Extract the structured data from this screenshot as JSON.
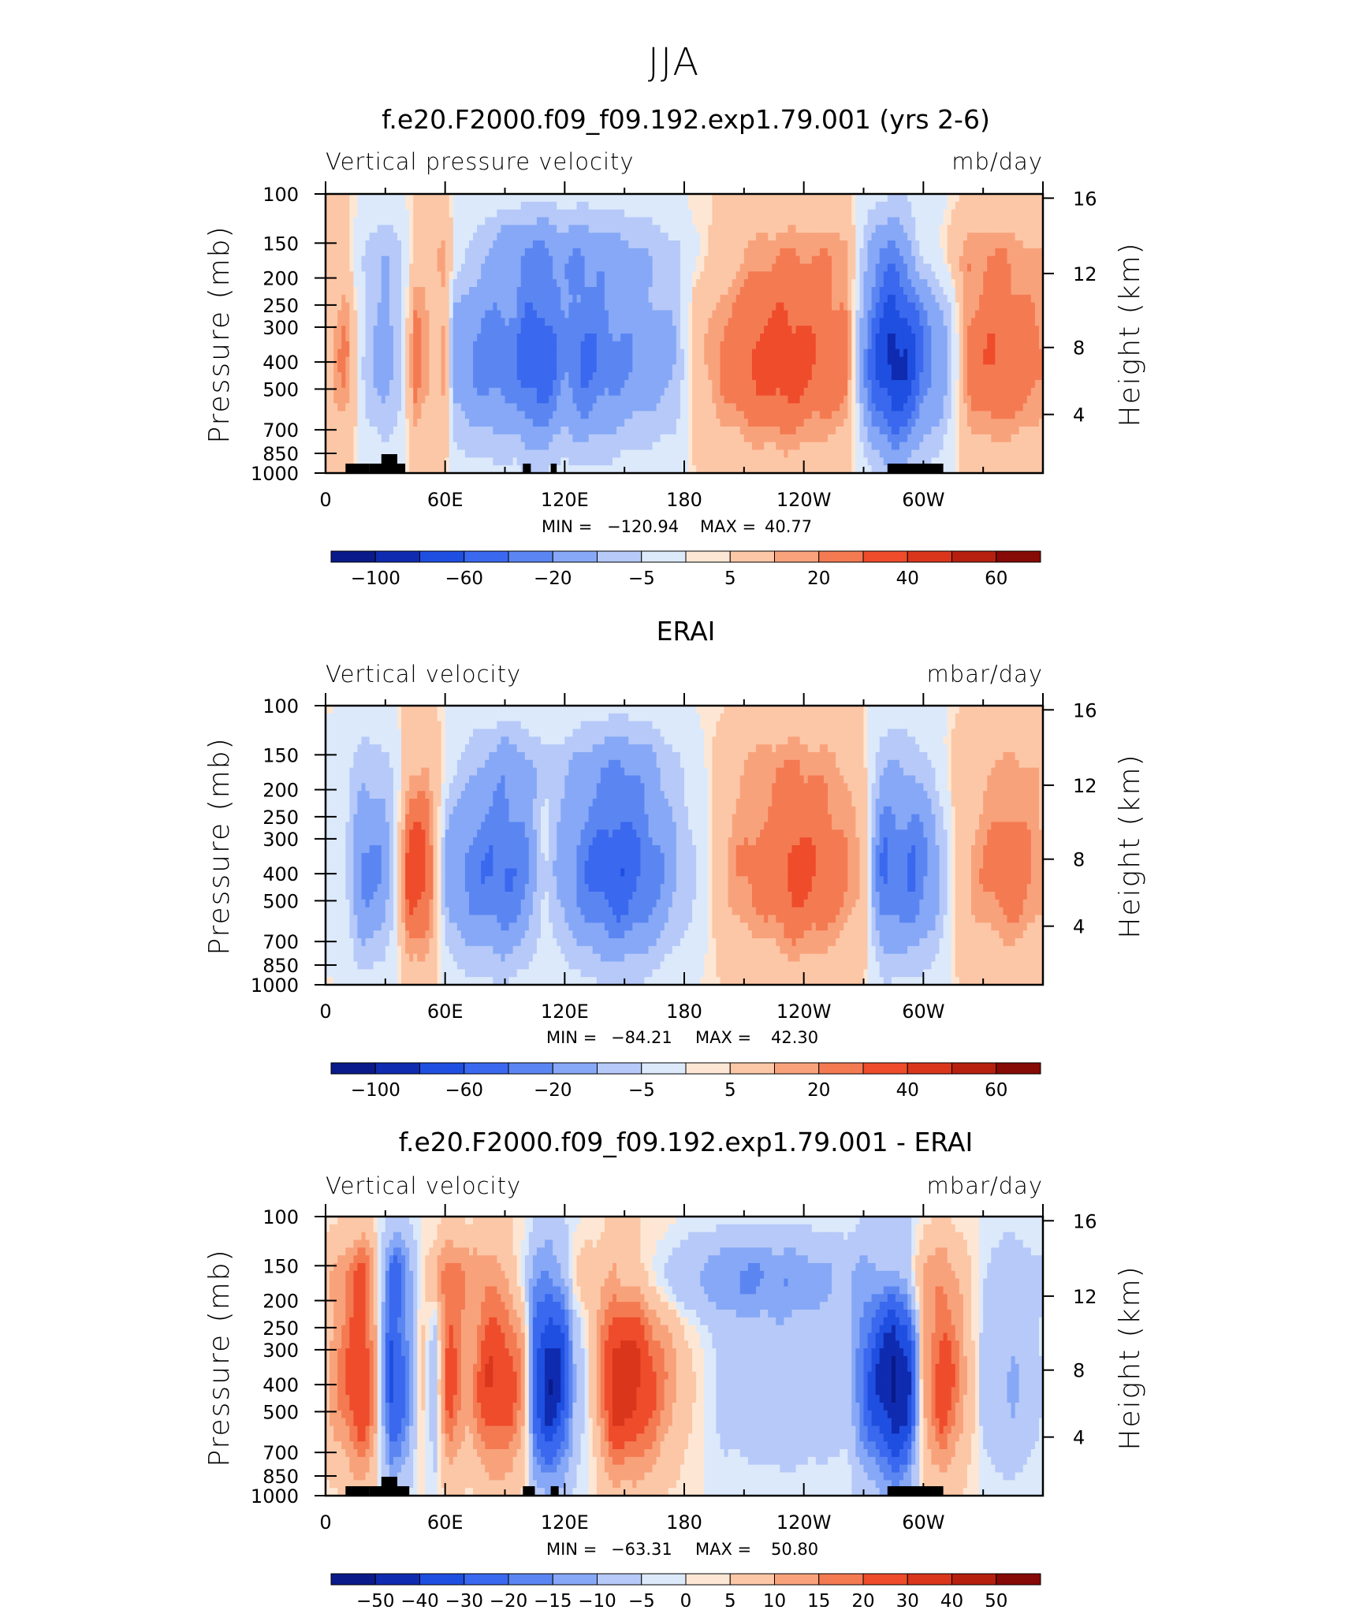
{
  "figure": {
    "title": "JJA"
  },
  "colors": {
    "levels_fill": [
      "#0a1a88",
      "#0f2bb0",
      "#1f4fe0",
      "#3a68ee",
      "#5b86f2",
      "#86a8f6",
      "#b6c9f8",
      "#dce9fb",
      "#fde7d4",
      "#fcc7a7",
      "#f8a27b",
      "#f47a52",
      "#ee4c2b",
      "#d9361c",
      "#b5200f",
      "#860a05"
    ],
    "land_mask": "#000000"
  },
  "chart_data": [
    {
      "type": "heatmap",
      "panel_title": "f.e20.F2000.f09_f09.192.exp1.79.001 (yrs 2-6)",
      "left_label": "Vertical pressure velocity",
      "right_label": "mb/day",
      "ylabel": "Pressure (mb)",
      "y2label": "Height (km)",
      "x_ticks": [
        "0",
        "60E",
        "120E",
        "180",
        "120W",
        "60W"
      ],
      "y_ticks": [
        "100",
        "150",
        "200",
        "250",
        "300",
        "400",
        "500",
        "700",
        "850",
        "1000"
      ],
      "y2_ticks": [
        "16",
        "12",
        "8",
        "4"
      ],
      "stats": {
        "min_label": "MIN =",
        "min": "−120.94",
        "max_label": "MAX =",
        "max": "40.77"
      },
      "colorbar_labels": [
        "−100",
        "−60",
        "−20",
        "−5",
        "5",
        "20",
        "40",
        "60"
      ],
      "profile": [
        {
          "lon": 0,
          "v": 6
        },
        {
          "lon": 10,
          "v": 18
        },
        {
          "lon": 20,
          "v": -14
        },
        {
          "lon": 30,
          "v": -30
        },
        {
          "lon": 38,
          "v": -12
        },
        {
          "lon": 45,
          "v": 20
        },
        {
          "lon": 55,
          "v": 8
        },
        {
          "lon": 60,
          "v": 12
        },
        {
          "lon": 65,
          "v": -28
        },
        {
          "lon": 80,
          "v": -42
        },
        {
          "lon": 95,
          "v": -45
        },
        {
          "lon": 100,
          "v": -62
        },
        {
          "lon": 110,
          "v": -65
        },
        {
          "lon": 120,
          "v": -38
        },
        {
          "lon": 130,
          "v": -55
        },
        {
          "lon": 145,
          "v": -40
        },
        {
          "lon": 160,
          "v": -30
        },
        {
          "lon": 175,
          "v": -22
        },
        {
          "lon": 185,
          "v": 5
        },
        {
          "lon": 200,
          "v": 18
        },
        {
          "lon": 215,
          "v": 28
        },
        {
          "lon": 230,
          "v": 33
        },
        {
          "lon": 245,
          "v": 26
        },
        {
          "lon": 262,
          "v": 18
        },
        {
          "lon": 276,
          "v": -70
        },
        {
          "lon": 285,
          "v": -105
        },
        {
          "lon": 292,
          "v": -88
        },
        {
          "lon": 300,
          "v": -48
        },
        {
          "lon": 310,
          "v": -28
        },
        {
          "lon": 322,
          "v": 18
        },
        {
          "lon": 335,
          "v": 26
        },
        {
          "lon": 350,
          "v": 22
        },
        {
          "lon": 360,
          "v": 16
        }
      ],
      "upper_profile": [
        {
          "lon": 0,
          "v": 5
        },
        {
          "lon": 30,
          "v": -15
        },
        {
          "lon": 60,
          "v": 12
        },
        {
          "lon": 90,
          "v": -22
        },
        {
          "lon": 120,
          "v": -25
        },
        {
          "lon": 150,
          "v": -18
        },
        {
          "lon": 180,
          "v": -6
        },
        {
          "lon": 220,
          "v": 6
        },
        {
          "lon": 260,
          "v": 10
        },
        {
          "lon": 280,
          "v": -20
        },
        {
          "lon": 300,
          "v": 8
        },
        {
          "lon": 330,
          "v": 10
        },
        {
          "lon": 360,
          "v": 6
        }
      ],
      "land_blocks": [
        [
          10,
          22
        ],
        [
          22,
          30
        ],
        [
          28,
          36
        ],
        [
          36,
          40
        ],
        [
          99,
          103
        ],
        [
          113,
          116
        ],
        [
          282,
          310
        ]
      ]
    },
    {
      "type": "heatmap",
      "panel_title": "ERAI",
      "left_label": "Vertical velocity",
      "right_label": "mbar/day",
      "ylabel": "Pressure (mb)",
      "y2label": "Height (km)",
      "x_ticks": [
        "0",
        "60E",
        "120E",
        "180",
        "120W",
        "60W"
      ],
      "y_ticks": [
        "100",
        "150",
        "200",
        "250",
        "300",
        "400",
        "500",
        "700",
        "850",
        "1000"
      ],
      "y2_ticks": [
        "16",
        "12",
        "8",
        "4"
      ],
      "stats": {
        "min_label": "MIN =",
        "min": "−84.21",
        "max_label": "MAX =",
        "max": "42.30"
      },
      "colorbar_labels": [
        "−100",
        "−60",
        "−20",
        "−5",
        "5",
        "20",
        "40",
        "60"
      ],
      "profile": [
        {
          "lon": 0,
          "v": -4
        },
        {
          "lon": 10,
          "v": -8
        },
        {
          "lon": 18,
          "v": -40
        },
        {
          "lon": 28,
          "v": -35
        },
        {
          "lon": 35,
          "v": -10
        },
        {
          "lon": 42,
          "v": 32
        },
        {
          "lon": 50,
          "v": 30
        },
        {
          "lon": 56,
          "v": 6
        },
        {
          "lon": 62,
          "v": -30
        },
        {
          "lon": 75,
          "v": -45
        },
        {
          "lon": 90,
          "v": -55
        },
        {
          "lon": 100,
          "v": -40
        },
        {
          "lon": 110,
          "v": -8
        },
        {
          "lon": 120,
          "v": -30
        },
        {
          "lon": 135,
          "v": -55
        },
        {
          "lon": 148,
          "v": -68
        },
        {
          "lon": 160,
          "v": -50
        },
        {
          "lon": 175,
          "v": -24
        },
        {
          "lon": 190,
          "v": -4
        },
        {
          "lon": 205,
          "v": 14
        },
        {
          "lon": 225,
          "v": 22
        },
        {
          "lon": 235,
          "v": 30
        },
        {
          "lon": 250,
          "v": 24
        },
        {
          "lon": 270,
          "v": 10
        },
        {
          "lon": 280,
          "v": -55
        },
        {
          "lon": 288,
          "v": -45
        },
        {
          "lon": 295,
          "v": -52
        },
        {
          "lon": 305,
          "v": -30
        },
        {
          "lon": 318,
          "v": 8
        },
        {
          "lon": 332,
          "v": 16
        },
        {
          "lon": 345,
          "v": 22
        },
        {
          "lon": 360,
          "v": 12
        }
      ],
      "upper_profile": [
        {
          "lon": 0,
          "v": -3
        },
        {
          "lon": 30,
          "v": -6
        },
        {
          "lon": 60,
          "v": 5
        },
        {
          "lon": 90,
          "v": -18
        },
        {
          "lon": 120,
          "v": -10
        },
        {
          "lon": 150,
          "v": -22
        },
        {
          "lon": 180,
          "v": -4
        },
        {
          "lon": 220,
          "v": 10
        },
        {
          "lon": 260,
          "v": 6
        },
        {
          "lon": 285,
          "v": -8
        },
        {
          "lon": 320,
          "v": 6
        },
        {
          "lon": 360,
          "v": 6
        }
      ],
      "land_blocks": []
    },
    {
      "type": "heatmap",
      "panel_title": "f.e20.F2000.f09_f09.192.exp1.79.001 - ERAI",
      "left_label": "Vertical velocity",
      "right_label": "mbar/day",
      "ylabel": "Pressure (mb)",
      "y2label": "Height (km)",
      "x_ticks": [
        "0",
        "60E",
        "120E",
        "180",
        "120W",
        "60W"
      ],
      "y_ticks": [
        "100",
        "150",
        "200",
        "250",
        "300",
        "400",
        "500",
        "700",
        "850",
        "1000"
      ],
      "y2_ticks": [
        "16",
        "12",
        "8",
        "4"
      ],
      "stats": {
        "min_label": "MIN =",
        "min": "−63.31",
        "max_label": "MAX =",
        "max": "50.80"
      },
      "colorbar_labels": [
        "−50",
        "−40",
        "−30",
        "−20",
        "−15",
        "−10",
        "−5",
        "0",
        "5",
        "10",
        "15",
        "20",
        "30",
        "40",
        "50"
      ],
      "profile": [
        {
          "lon": 0,
          "v": 6
        },
        {
          "lon": 8,
          "v": 14
        },
        {
          "lon": 18,
          "v": 28
        },
        {
          "lon": 25,
          "v": 10
        },
        {
          "lon": 33,
          "v": -30
        },
        {
          "lon": 40,
          "v": -18
        },
        {
          "lon": 48,
          "v": 4
        },
        {
          "lon": 55,
          "v": -6
        },
        {
          "lon": 62,
          "v": 22
        },
        {
          "lon": 72,
          "v": 8
        },
        {
          "lon": 82,
          "v": 26
        },
        {
          "lon": 92,
          "v": 22
        },
        {
          "lon": 100,
          "v": 8
        },
        {
          "lon": 105,
          "v": -25
        },
        {
          "lon": 112,
          "v": -45
        },
        {
          "lon": 118,
          "v": -35
        },
        {
          "lon": 125,
          "v": -8
        },
        {
          "lon": 135,
          "v": 5
        },
        {
          "lon": 145,
          "v": 32
        },
        {
          "lon": 155,
          "v": 30
        },
        {
          "lon": 168,
          "v": 14
        },
        {
          "lon": 180,
          "v": 4
        },
        {
          "lon": 200,
          "v": -4
        },
        {
          "lon": 230,
          "v": -6
        },
        {
          "lon": 262,
          "v": -4
        },
        {
          "lon": 272,
          "v": -24
        },
        {
          "lon": 285,
          "v": -52
        },
        {
          "lon": 292,
          "v": -40
        },
        {
          "lon": 300,
          "v": 8
        },
        {
          "lon": 310,
          "v": 24
        },
        {
          "lon": 318,
          "v": 12
        },
        {
          "lon": 330,
          "v": -4
        },
        {
          "lon": 345,
          "v": -8
        },
        {
          "lon": 360,
          "v": -2
        }
      ],
      "upper_profile": [
        {
          "lon": 0,
          "v": 4
        },
        {
          "lon": 20,
          "v": 14
        },
        {
          "lon": 35,
          "v": -16
        },
        {
          "lon": 60,
          "v": 14
        },
        {
          "lon": 80,
          "v": 6
        },
        {
          "lon": 100,
          "v": -5
        },
        {
          "lon": 130,
          "v": 6
        },
        {
          "lon": 150,
          "v": -4
        },
        {
          "lon": 180,
          "v": -8
        },
        {
          "lon": 210,
          "v": -14
        },
        {
          "lon": 240,
          "v": -10
        },
        {
          "lon": 270,
          "v": -4
        },
        {
          "lon": 285,
          "v": 8
        },
        {
          "lon": 310,
          "v": 6
        },
        {
          "lon": 340,
          "v": -4
        },
        {
          "lon": 360,
          "v": -2
        }
      ],
      "land_blocks": [
        [
          10,
          22
        ],
        [
          22,
          30
        ],
        [
          28,
          36
        ],
        [
          36,
          42
        ],
        [
          99,
          105
        ],
        [
          113,
          117
        ],
        [
          282,
          310
        ]
      ]
    }
  ]
}
